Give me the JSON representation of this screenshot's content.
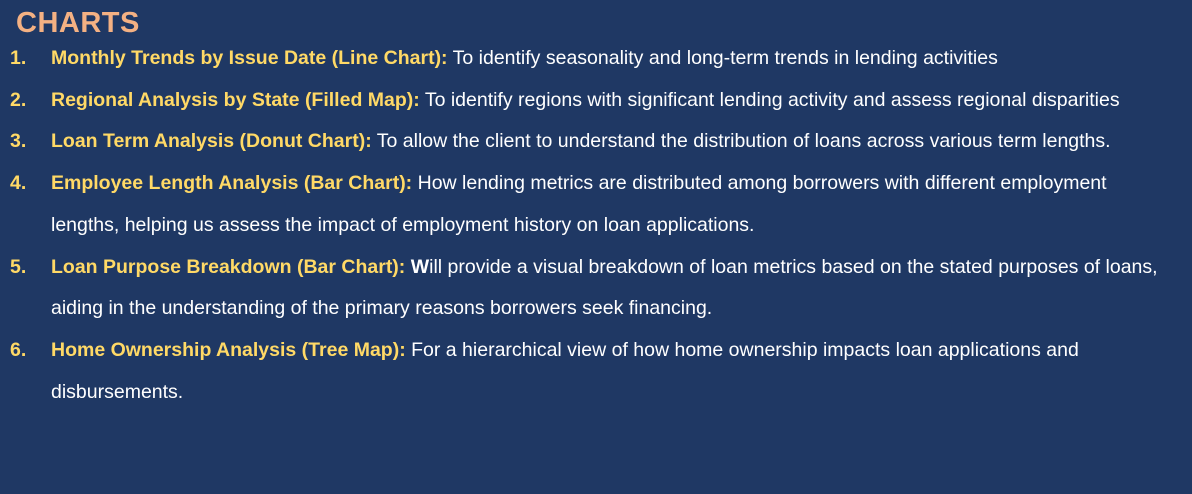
{
  "heading": "CHARTS",
  "items": [
    {
      "number": "1.",
      "title": "Monthly Trends by Issue Date (Line Chart):",
      "lead": "",
      "description": "  To identify seasonality and long-term trends in lending activities"
    },
    {
      "number": "2.",
      "title": "Regional Analysis by State (Filled Map):",
      "lead": "",
      "description": " To identify regions with significant lending activity and assess regional disparities"
    },
    {
      "number": "3.",
      "title": "Loan Term Analysis (Donut Chart):",
      "lead": "",
      "description": " To allow the client to understand the distribution of loans across various term lengths."
    },
    {
      "number": "4.",
      "title": "Employee Length Analysis (Bar Chart):",
      "lead": "",
      "description": " How lending metrics are distributed among borrowers with different employment lengths, helping us assess the impact of employment history on loan applications."
    },
    {
      "number": "5.",
      "title": "Loan Purpose Breakdown (Bar Chart):",
      "lead": " W",
      "description": "ill provide a visual breakdown of loan metrics based on the stated purposes of loans, aiding in the understanding of the primary reasons borrowers seek financing."
    },
    {
      "number": "6.",
      "title": "Home Ownership Analysis (Tree Map):",
      "lead": "",
      "description": " For a hierarchical view of how home ownership impacts loan applications and disbursements."
    }
  ]
}
